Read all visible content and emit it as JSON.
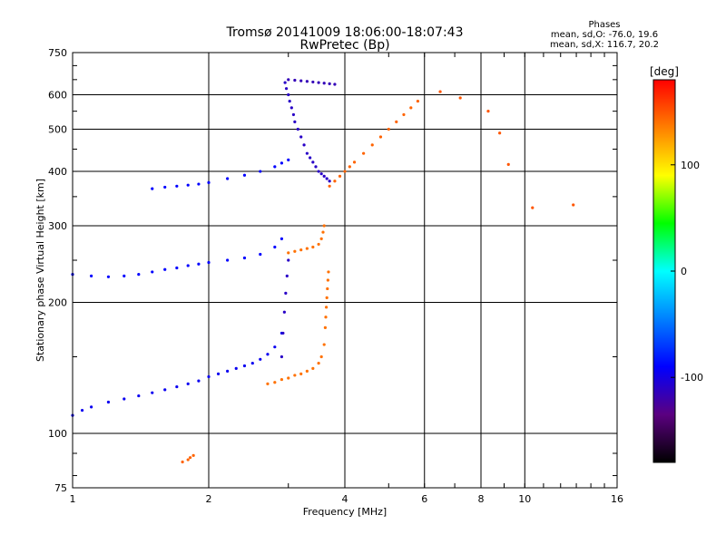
{
  "chart_data": {
    "type": "scatter",
    "title": "Tromsø 20141009 18:06:00-18:07:43",
    "subtitle": "RwPretec (Bp)",
    "xlabel": "Frequency [MHz]",
    "ylabel": "Stationary phase Virtual Height [km]",
    "x_scale": "log",
    "y_scale": "log",
    "xlim": [
      1,
      16
    ],
    "ylim": [
      75,
      750
    ],
    "x_ticks": [
      1,
      2,
      4,
      6,
      8,
      10,
      16
    ],
    "y_ticks": [
      75,
      100,
      200,
      300,
      400,
      500,
      600,
      750
    ],
    "grid": true,
    "annotation": {
      "title": "Phases",
      "line1": "mean, sd,O: -76.0, 19.6",
      "line2": "mean, sd,X: 116.7, 20.2"
    },
    "colorbar": {
      "label": "[deg]",
      "range": [
        -180,
        180
      ],
      "ticks": [
        100,
        0,
        -100
      ],
      "colors": [
        "#ff0000",
        "#ff7f00",
        "#ffff00",
        "#00ff00",
        "#00ffff",
        "#0080ff",
        "#0000ff",
        "#5b0080",
        "#000000"
      ]
    },
    "series": [
      {
        "x": [
          1.0,
          1.05,
          1.1,
          1.2,
          1.3,
          1.4,
          1.5,
          1.6,
          1.7,
          1.8,
          1.9,
          2.0,
          2.1,
          2.2,
          2.3,
          2.4,
          2.5,
          2.6,
          2.7,
          2.8,
          2.9
        ],
        "y": [
          110,
          113,
          115,
          118,
          120,
          122,
          124,
          126,
          128,
          130,
          132,
          135,
          137,
          139,
          141,
          143,
          145,
          148,
          152,
          158,
          170
        ],
        "phase": -95
      },
      {
        "x": [
          1.0,
          1.1,
          1.2,
          1.3,
          1.4,
          1.5,
          1.6,
          1.7,
          1.8,
          1.9,
          2.0,
          2.2,
          2.4,
          2.6,
          2.8,
          2.9
        ],
        "y": [
          232,
          230,
          229,
          230,
          232,
          235,
          238,
          240,
          243,
          245,
          247,
          250,
          253,
          258,
          268,
          280
        ],
        "phase": -90
      },
      {
        "x": [
          1.5,
          1.6,
          1.7,
          1.8,
          1.9,
          2.0,
          2.2,
          2.4,
          2.6,
          2.8,
          2.9,
          3.0
        ],
        "y": [
          365,
          368,
          370,
          372,
          374,
          377,
          385,
          392,
          400,
          410,
          418,
          425
        ],
        "phase": -90
      },
      {
        "x": [
          2.7,
          2.8,
          2.9,
          3.0,
          3.1,
          3.2,
          3.3,
          3.4,
          3.5,
          3.55,
          3.6
        ],
        "y": [
          130,
          131,
          133,
          134,
          136,
          137,
          139,
          141,
          145,
          150,
          160
        ],
        "phase": 140
      },
      {
        "x": [
          3.62,
          3.63,
          3.64,
          3.65,
          3.66,
          3.67,
          3.68
        ],
        "y": [
          175,
          185,
          195,
          205,
          215,
          225,
          235
        ],
        "phase": 140
      },
      {
        "x": [
          3.0,
          3.1,
          3.2,
          3.3,
          3.4,
          3.5,
          3.55,
          3.58,
          3.6
        ],
        "y": [
          260,
          262,
          264,
          266,
          268,
          272,
          280,
          290,
          300
        ],
        "phase": 140
      },
      {
        "x": [
          3.7,
          3.8,
          3.9,
          4.0,
          4.1,
          4.2,
          4.4,
          4.6,
          4.8,
          5.0,
          5.2,
          5.4,
          5.6,
          5.8
        ],
        "y": [
          370,
          380,
          390,
          400,
          410,
          420,
          440,
          460,
          480,
          500,
          520,
          540,
          560,
          580
        ],
        "phase": 145
      },
      {
        "x": [
          2.95,
          2.97,
          3.0,
          3.02,
          3.05,
          3.08,
          3.1,
          3.15,
          3.2,
          3.25,
          3.3,
          3.35,
          3.4,
          3.45,
          3.5,
          3.55,
          3.6,
          3.65,
          3.7
        ],
        "y": [
          640,
          620,
          600,
          580,
          560,
          540,
          520,
          500,
          480,
          460,
          440,
          430,
          420,
          410,
          400,
          395,
          390,
          385,
          380
        ],
        "phase": -110
      },
      {
        "x": [
          3.0,
          3.1,
          3.2,
          3.3,
          3.4,
          3.5,
          3.6,
          3.7,
          3.8
        ],
        "y": [
          650,
          648,
          646,
          644,
          642,
          640,
          638,
          636,
          634
        ],
        "phase": -115
      },
      {
        "x": [
          2.9,
          2.92,
          2.94,
          2.96,
          2.98,
          3.0
        ],
        "y": [
          150,
          170,
          190,
          210,
          230,
          250
        ],
        "phase": -110
      },
      {
        "x": [
          1.75,
          1.8,
          1.82,
          1.85
        ],
        "y": [
          86,
          87,
          88,
          89
        ],
        "phase": 145
      },
      {
        "x": [
          6.5,
          7.2,
          8.3,
          8.8,
          9.2,
          10.4,
          12.8
        ],
        "y": [
          610,
          590,
          550,
          490,
          415,
          330,
          335
        ],
        "phase": 150
      }
    ]
  }
}
